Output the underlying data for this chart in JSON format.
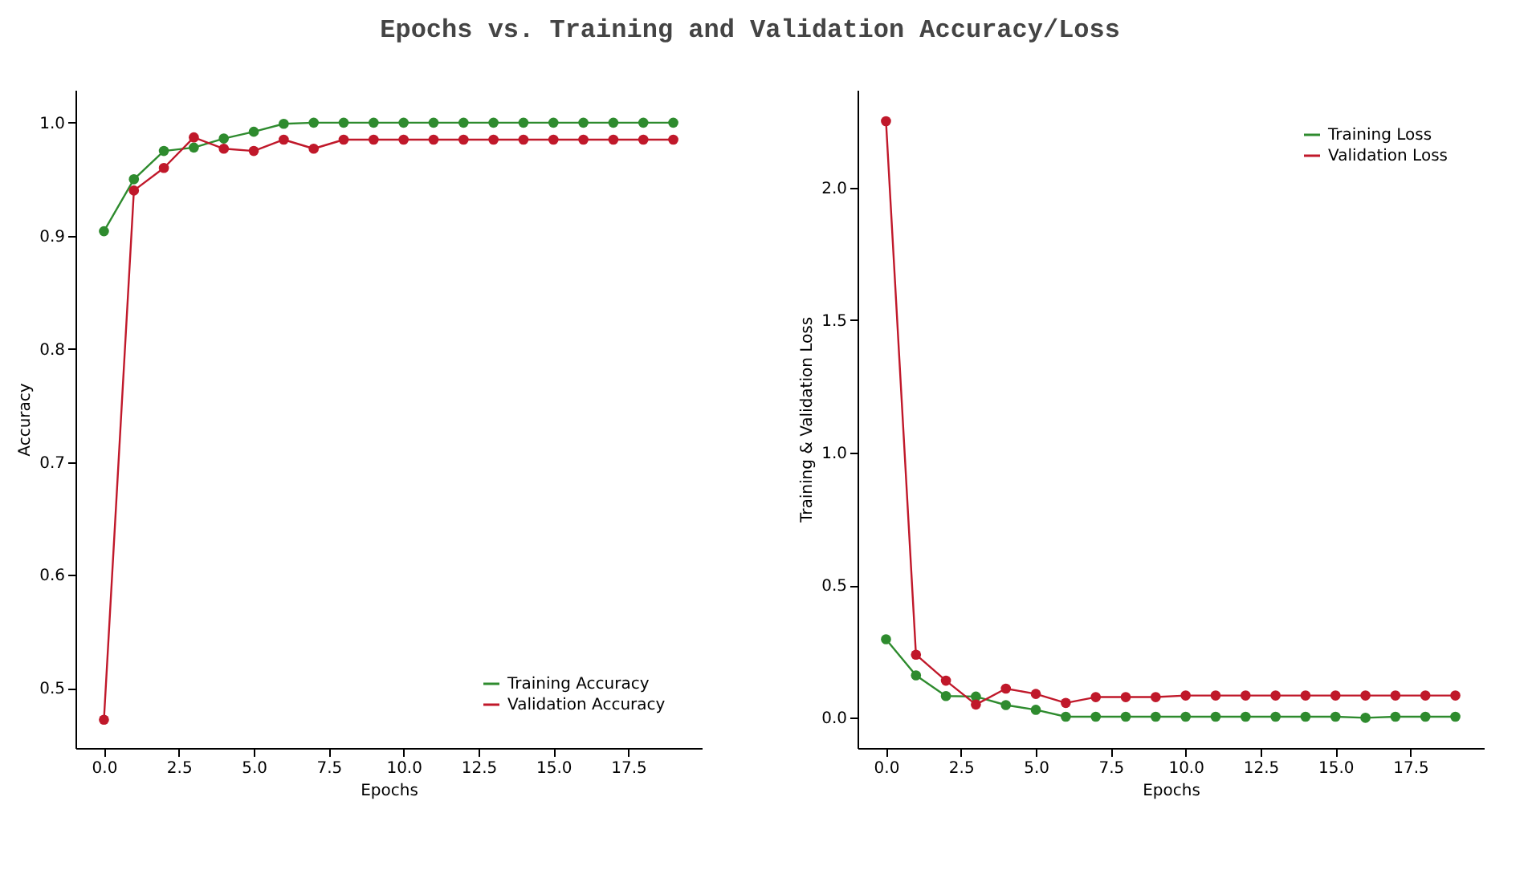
{
  "chart_data": [
    {
      "type": "line",
      "title": "Epochs vs. Training and Validation Accuracy/Loss",
      "xlabel": "Epochs",
      "ylabel": "Accuracy",
      "x": [
        0,
        1,
        2,
        3,
        4,
        5,
        6,
        7,
        8,
        9,
        10,
        11,
        12,
        13,
        14,
        15,
        16,
        17,
        18,
        19
      ],
      "series": [
        {
          "name": "Training Accuracy",
          "color": "#2e8b2e",
          "values": [
            0.904,
            0.95,
            0.975,
            0.978,
            0.986,
            0.992,
            0.999,
            1.0,
            1.0,
            1.0,
            1.0,
            1.0,
            1.0,
            1.0,
            1.0,
            1.0,
            1.0,
            1.0,
            1.0,
            1.0
          ]
        },
        {
          "name": "Validation Accuracy",
          "color": "#c0182a",
          "values": [
            0.472,
            0.94,
            0.96,
            0.987,
            0.977,
            0.975,
            0.985,
            0.977,
            0.985,
            0.985,
            0.985,
            0.985,
            0.985,
            0.985,
            0.985,
            0.985,
            0.985,
            0.985,
            0.985,
            0.985
          ]
        }
      ],
      "xlim": [
        -0.95,
        19.95
      ],
      "xticks": [
        {
          "value": 0,
          "label": "0.0"
        },
        2.5,
        {
          "value": 5,
          "label": "5.0"
        },
        7.5,
        {
          "value": 10,
          "label": "10.0"
        },
        12.5,
        {
          "value": 15,
          "label": "15.0"
        },
        17.5
      ],
      "ylim": [
        0.447,
        1.029
      ],
      "yticks": [
        0.5,
        0.6,
        0.7,
        0.8,
        0.9,
        {
          "value": 1,
          "label": "1.0"
        }
      ],
      "grid": false,
      "legend": "bottom right",
      "marker": "circle",
      "line_style": "solid"
    },
    {
      "type": "line",
      "xlabel": "Epochs",
      "ylabel": "Training & Validation Loss",
      "x": [
        0,
        1,
        2,
        3,
        4,
        5,
        6,
        7,
        8,
        9,
        10,
        11,
        12,
        13,
        14,
        15,
        16,
        17,
        18,
        19
      ],
      "series": [
        {
          "name": "Training Loss",
          "color": "#2e8b2e",
          "values": [
            0.296,
            0.16,
            0.082,
            0.08,
            0.048,
            0.03,
            0.004,
            0.004,
            0.004,
            0.004,
            0.004,
            0.004,
            0.004,
            0.004,
            0.004,
            0.004,
            0.0,
            0.004,
            0.004,
            0.004
          ]
        },
        {
          "name": "Validation Loss",
          "color": "#c0182a",
          "values": [
            2.25,
            0.238,
            0.14,
            0.05,
            0.11,
            0.09,
            0.056,
            0.078,
            0.078,
            0.078,
            0.084,
            0.084,
            0.084,
            0.084,
            0.084,
            0.084,
            0.084,
            0.084,
            0.084,
            0.084
          ]
        }
      ],
      "xlim": [
        -0.95,
        19.95
      ],
      "xticks": [
        {
          "value": 0,
          "label": "0.0"
        },
        2.5,
        {
          "value": 5,
          "label": "5.0"
        },
        7.5,
        {
          "value": 10,
          "label": "10.0"
        },
        12.5,
        {
          "value": 15,
          "label": "15.0"
        },
        17.5
      ],
      "ylim": [
        -0.114,
        2.368
      ],
      "yticks": [
        {
          "value": 0,
          "label": "0.0"
        },
        0.5,
        {
          "value": 1,
          "label": "1.0"
        },
        1.5,
        {
          "value": 2,
          "label": "2.0"
        }
      ],
      "grid": false,
      "legend": "top right",
      "marker": "circle",
      "line_style": "solid"
    }
  ]
}
